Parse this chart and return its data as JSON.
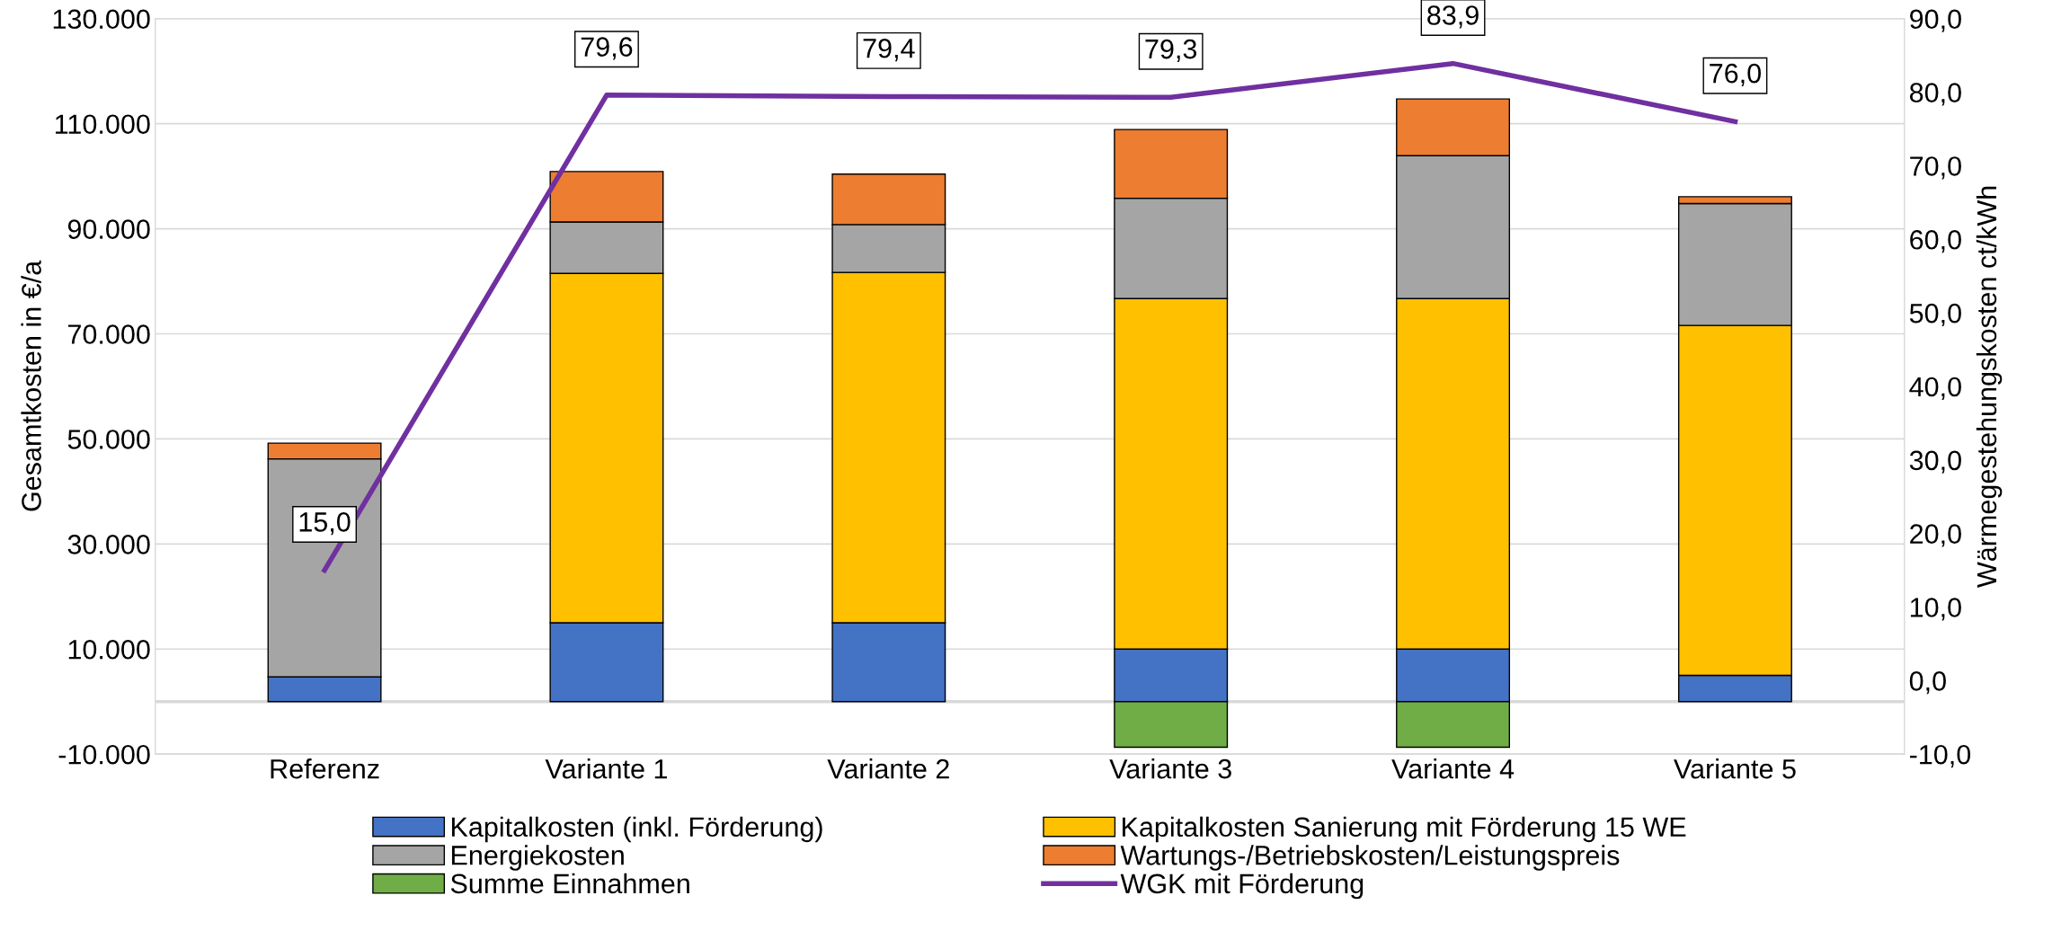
{
  "chart_data": {
    "type": "bar",
    "stacked": true,
    "ylabel": "Gesamtkosten in €/a",
    "y2label": "Wärmegestehungskosten ct/kWh",
    "categories": [
      "Referenz",
      "Variante 1",
      "Variante 2",
      "Variante 3",
      "Variante 4",
      "Variante 5"
    ],
    "series": [
      {
        "name": "Kapitalkosten (inkl. Förderung)",
        "color": "#4472c4",
        "values": [
          4700,
          15000,
          15000,
          10000,
          10000,
          5000
        ]
      },
      {
        "name": "Kapitalkosten Sanierung mit Förderung 15 WE",
        "color": "#ffc000",
        "values": [
          null,
          66500,
          66700,
          66700,
          66700,
          66600
        ]
      },
      {
        "name": "Energiekosten",
        "color": "#a5a5a5",
        "values": [
          41500,
          9800,
          9100,
          19100,
          27200,
          23200
        ]
      },
      {
        "name": "Wartungs-/Betriebskosten/Leistungspreis",
        "color": "#ed7d31",
        "values": [
          3000,
          9600,
          9600,
          13100,
          10800,
          1300
        ]
      },
      {
        "name": "Summe Einnahmen",
        "color": "#70ad47",
        "values": [
          null,
          null,
          null,
          -8700,
          -8700,
          null
        ]
      },
      {
        "name": "WGK mit Förderung",
        "type": "line",
        "axis": "y2",
        "color": "#7030a0",
        "values": [
          15.0,
          79.6,
          79.4,
          79.3,
          83.9,
          76.0
        ],
        "value_labels": [
          "15,0",
          "79,6",
          "79,4",
          "79,3",
          "83,9",
          "76,0"
        ]
      }
    ],
    "ylim": [
      -10000,
      130000
    ],
    "yticks": [
      {
        "value": -10000,
        "label": "-10.000"
      },
      {
        "value": 10000,
        "label": "10.000"
      },
      {
        "value": 30000,
        "label": "30.000"
      },
      {
        "value": 50000,
        "label": "50.000"
      },
      {
        "value": 70000,
        "label": "70.000"
      },
      {
        "value": 90000,
        "label": "90.000"
      },
      {
        "value": 110000,
        "label": "110.000"
      },
      {
        "value": 130000,
        "label": "130.000"
      }
    ],
    "y2lim": [
      -10,
      90
    ],
    "y2ticks": [
      {
        "value": -10,
        "label": "-10,0"
      },
      {
        "value": 0,
        "label": "0,0"
      },
      {
        "value": 10,
        "label": "10,0"
      },
      {
        "value": 20,
        "label": "20,0"
      },
      {
        "value": 30,
        "label": "30,0"
      },
      {
        "value": 40,
        "label": "40,0"
      },
      {
        "value": 50,
        "label": "50,0"
      },
      {
        "value": 60,
        "label": "60,0"
      },
      {
        "value": 70,
        "label": "70,0"
      },
      {
        "value": 80,
        "label": "80,0"
      },
      {
        "value": 90,
        "label": "90,0"
      }
    ],
    "grid": "y",
    "legend": "bottom"
  }
}
